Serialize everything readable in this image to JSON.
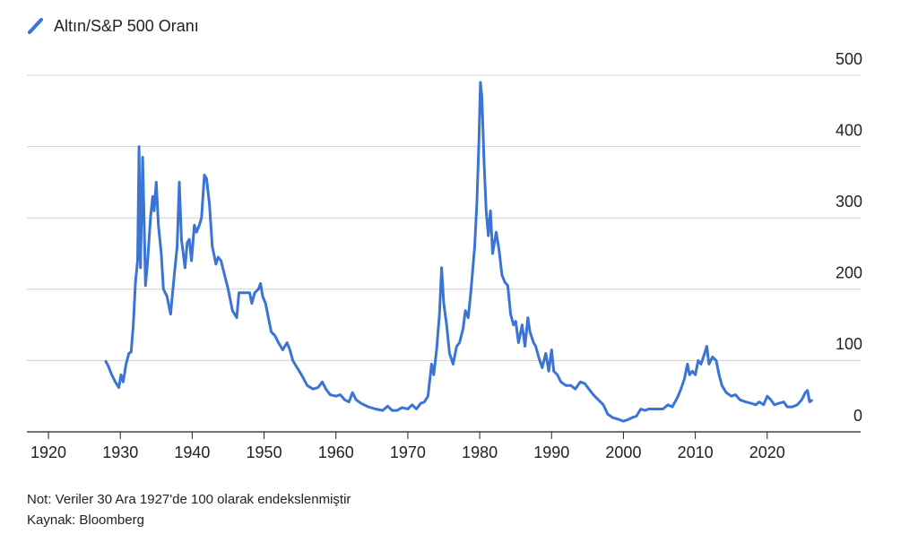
{
  "chart_data": {
    "type": "line",
    "series": [
      {
        "name": "Altın/S&P 500 Oranı",
        "color": "#3a74d4",
        "x": [
          1927.9,
          1928.3,
          1928.8,
          1929.3,
          1929.8,
          1930.1,
          1930.4,
          1930.8,
          1931.2,
          1931.5,
          1931.8,
          1932.1,
          1932.4,
          1932.6,
          1932.8,
          1933.1,
          1933.3,
          1933.5,
          1933.8,
          1934.2,
          1934.5,
          1934.7,
          1935.0,
          1935.3,
          1935.7,
          1936.0,
          1936.5,
          1937.0,
          1937.5,
          1937.9,
          1938.2,
          1938.5,
          1939.0,
          1939.3,
          1939.6,
          1939.9,
          1940.3,
          1940.6,
          1941.0,
          1941.3,
          1941.7,
          1942.0,
          1942.4,
          1942.8,
          1943.3,
          1943.6,
          1944.0,
          1944.5,
          1945.0,
          1945.6,
          1946.2,
          1946.5,
          1947.0,
          1947.5,
          1948.0,
          1948.3,
          1948.7,
          1949.2,
          1949.5,
          1949.8,
          1950.2,
          1950.6,
          1951.0,
          1951.5,
          1952.0,
          1952.6,
          1953.2,
          1953.6,
          1954.0,
          1954.6,
          1955.2,
          1956.0,
          1956.8,
          1957.5,
          1958.1,
          1958.6,
          1959.2,
          1960.0,
          1960.6,
          1961.2,
          1961.8,
          1962.3,
          1962.8,
          1963.5,
          1964.5,
          1965.5,
          1966.5,
          1967.2,
          1967.8,
          1968.5,
          1969.2,
          1970.0,
          1970.6,
          1971.2,
          1971.8,
          1972.3,
          1972.8,
          1973.3,
          1973.6,
          1974.0,
          1974.4,
          1974.7,
          1975.0,
          1975.4,
          1975.8,
          1976.3,
          1976.8,
          1977.2,
          1977.7,
          1978.0,
          1978.4,
          1978.8,
          1979.3,
          1979.6,
          1979.9,
          1980.1,
          1980.3,
          1980.6,
          1980.9,
          1981.2,
          1981.5,
          1981.8,
          1982.3,
          1982.7,
          1983.1,
          1983.5,
          1983.9,
          1984.3,
          1984.7,
          1985.0,
          1985.4,
          1985.9,
          1986.3,
          1986.7,
          1987.0,
          1987.5,
          1987.8,
          1988.2,
          1988.7,
          1989.2,
          1989.6,
          1990.0,
          1990.3,
          1990.8,
          1991.3,
          1992.0,
          1992.7,
          1993.3,
          1994.0,
          1994.6,
          1995.2,
          1995.8,
          1996.5,
          1997.2,
          1997.8,
          1998.5,
          1999.2,
          2000.0,
          2000.6,
          2001.2,
          2001.8,
          2002.4,
          2003.0,
          2003.5,
          2004.5,
          2005.5,
          2006.2,
          2006.8,
          2007.5,
          2008.0,
          2008.5,
          2008.9,
          2009.2,
          2009.6,
          2010.0,
          2010.4,
          2010.8,
          2011.3,
          2011.6,
          2011.9,
          2012.4,
          2012.9,
          2013.3,
          2013.7,
          2014.3,
          2015.0,
          2015.6,
          2016.2,
          2017.0,
          2017.8,
          2018.4,
          2018.9,
          2019.5,
          2020.0,
          2020.5,
          2021.0,
          2021.6,
          2022.3,
          2022.8,
          2023.5,
          2024.2,
          2024.8,
          2025.3,
          2025.6,
          2025.9,
          2026.3
        ],
        "values": [
          100,
          93,
          80,
          70,
          62,
          80,
          70,
          95,
          110,
          112,
          150,
          210,
          240,
          400,
          230,
          385,
          300,
          205,
          240,
          300,
          330,
          310,
          350,
          290,
          250,
          200,
          190,
          165,
          220,
          260,
          350,
          270,
          230,
          265,
          270,
          240,
          290,
          280,
          290,
          300,
          360,
          355,
          320,
          260,
          235,
          245,
          240,
          220,
          200,
          170,
          160,
          195,
          195,
          195,
          195,
          180,
          195,
          200,
          208,
          190,
          180,
          160,
          140,
          135,
          125,
          115,
          125,
          115,
          100,
          90,
          80,
          65,
          60,
          62,
          70,
          60,
          52,
          50,
          52,
          45,
          42,
          55,
          45,
          40,
          35,
          32,
          30,
          36,
          30,
          30,
          34,
          32,
          38,
          32,
          40,
          42,
          50,
          95,
          80,
          115,
          165,
          230,
          180,
          150,
          110,
          95,
          120,
          125,
          145,
          170,
          160,
          200,
          260,
          320,
          410,
          490,
          470,
          380,
          310,
          275,
          310,
          250,
          280,
          255,
          220,
          210,
          205,
          165,
          150,
          155,
          125,
          150,
          120,
          160,
          140,
          125,
          120,
          105,
          90,
          110,
          85,
          115,
          85,
          80,
          70,
          65,
          65,
          60,
          70,
          68,
          60,
          52,
          45,
          38,
          25,
          20,
          18,
          15,
          17,
          20,
          22,
          32,
          30,
          32,
          32,
          32,
          38,
          35,
          48,
          60,
          75,
          95,
          80,
          85,
          80,
          100,
          95,
          110,
          120,
          95,
          105,
          100,
          80,
          65,
          55,
          50,
          52,
          45,
          42,
          40,
          38,
          42,
          38,
          50,
          45,
          38,
          40,
          42,
          35,
          35,
          38,
          45,
          55,
          58,
          42,
          45
        ]
      }
    ],
    "xlim": [
      1917,
      2033
    ],
    "xticks": [
      1920,
      1930,
      1940,
      1950,
      1960,
      1970,
      1980,
      1990,
      2000,
      2010,
      2020
    ],
    "ylim": [
      0,
      500
    ],
    "yticks": [
      0,
      100,
      200,
      300,
      400,
      500
    ],
    "grid": true,
    "note": "Not: Veriler 30 Ara 1927'de 100 olarak endekslenmiştir",
    "source": "Kaynak: Bloomberg"
  }
}
